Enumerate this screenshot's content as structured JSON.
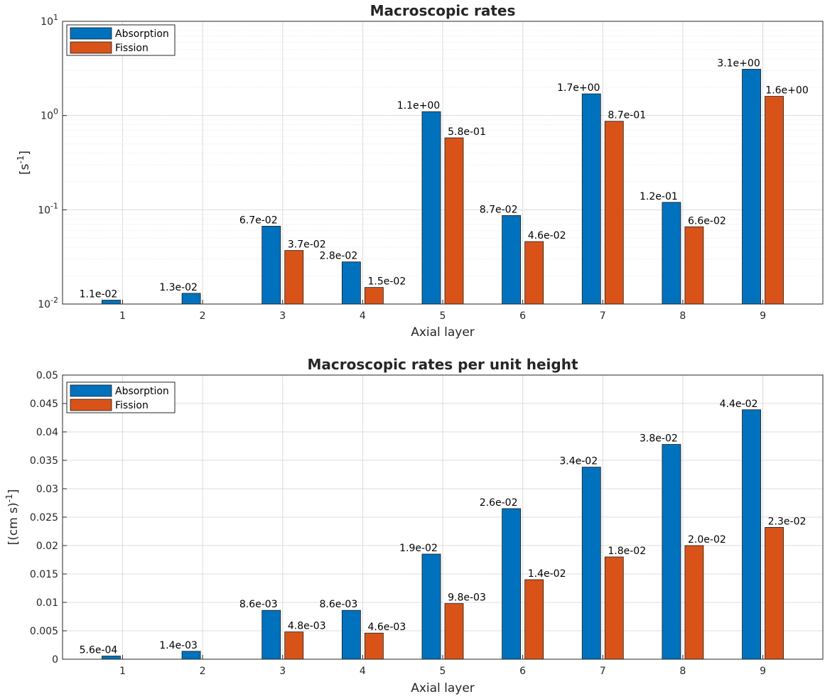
{
  "chart_data": [
    {
      "type": "bar",
      "title": "Macroscopic rates",
      "xlabel": "Axial layer",
      "ylabel_base": "[s",
      "ylabel_sup": "-1",
      "ylabel_end": "]",
      "yscale": "log",
      "ylim": [
        0.01,
        10
      ],
      "ytick_labels": [
        {
          "value": 0.01,
          "base": "10",
          "exp": "-2"
        },
        {
          "value": 0.1,
          "base": "10",
          "exp": "-1"
        },
        {
          "value": 1,
          "base": "10",
          "exp": "0"
        },
        {
          "value": 10,
          "base": "10",
          "exp": "1"
        }
      ],
      "grid": true,
      "minor_grid": true,
      "legend_position": "top-left",
      "categories": [
        "1",
        "2",
        "3",
        "4",
        "5",
        "6",
        "7",
        "8",
        "9"
      ],
      "series": [
        {
          "name": "Absorption",
          "color": "#0072BD",
          "values": [
            0.011,
            0.013,
            0.067,
            0.028,
            1.1,
            0.087,
            1.7,
            0.12,
            3.1
          ],
          "labels": [
            "1.1e-02",
            "1.3e-02",
            "6.7e-02",
            "2.8e-02",
            "1.1e+00",
            "8.7e-02",
            "1.7e+00",
            "1.2e-01",
            "3.1e+00"
          ]
        },
        {
          "name": "Fission",
          "color": "#D95319",
          "values": [
            0,
            0,
            0.037,
            0.015,
            0.58,
            0.046,
            0.87,
            0.066,
            1.6
          ],
          "labels": [
            "",
            "",
            "3.7e-02",
            "1.5e-02",
            "5.8e-01",
            "4.6e-02",
            "8.7e-01",
            "6.6e-02",
            "1.6e+00"
          ]
        }
      ]
    },
    {
      "type": "bar",
      "title": "Macroscopic rates per unit height",
      "xlabel": "Axial layer",
      "ylabel_base": "[(cm s)",
      "ylabel_sup": "-1",
      "ylabel_end": "]",
      "yscale": "linear",
      "ylim": [
        0,
        0.05
      ],
      "ytick_labels": [
        {
          "value": 0,
          "base": "0"
        },
        {
          "value": 0.005,
          "base": "0.005"
        },
        {
          "value": 0.01,
          "base": "0.01"
        },
        {
          "value": 0.015,
          "base": "0.015"
        },
        {
          "value": 0.02,
          "base": "0.02"
        },
        {
          "value": 0.025,
          "base": "0.025"
        },
        {
          "value": 0.03,
          "base": "0.03"
        },
        {
          "value": 0.035,
          "base": "0.035"
        },
        {
          "value": 0.04,
          "base": "0.04"
        },
        {
          "value": 0.045,
          "base": "0.045"
        },
        {
          "value": 0.05,
          "base": "0.05"
        }
      ],
      "grid": true,
      "minor_grid": false,
      "legend_position": "top-left",
      "categories": [
        "1",
        "2",
        "3",
        "4",
        "5",
        "6",
        "7",
        "8",
        "9"
      ],
      "series": [
        {
          "name": "Absorption",
          "color": "#0072BD",
          "values": [
            0.00056,
            0.0014,
            0.0086,
            0.0086,
            0.0185,
            0.0265,
            0.0338,
            0.0378,
            0.0439
          ],
          "labels": [
            "5.6e-04",
            "1.4e-03",
            "8.6e-03",
            "8.6e-03",
            "1.9e-02",
            "2.6e-02",
            "3.4e-02",
            "3.8e-02",
            "4.4e-02"
          ]
        },
        {
          "name": "Fission",
          "color": "#D95319",
          "values": [
            0,
            0,
            0.0048,
            0.0046,
            0.0098,
            0.014,
            0.018,
            0.02,
            0.0232
          ],
          "labels": [
            "",
            "",
            "4.8e-03",
            "4.6e-03",
            "9.8e-03",
            "1.4e-02",
            "1.8e-02",
            "2.0e-02",
            "2.3e-02"
          ]
        }
      ]
    }
  ]
}
